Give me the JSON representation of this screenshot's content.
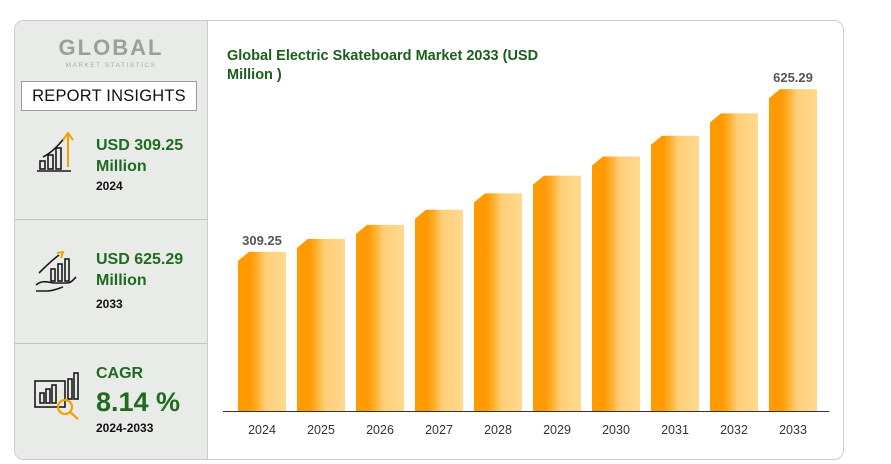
{
  "logo": {
    "main": "GLOBAL",
    "sub": "MARKET STATISTICS"
  },
  "sidebar": {
    "heading": "REPORT INSIGHTS",
    "stat1": {
      "value": "USD 309.25",
      "unit": "Million",
      "year": "2024",
      "icon": "bar-chart-up-icon"
    },
    "stat2": {
      "value": "USD 625.29",
      "unit": "Million",
      "year": "2033",
      "icon": "hand-growth-chart-icon"
    },
    "stat3": {
      "label": "CAGR",
      "value": "8.14 %",
      "years": "2024-2033",
      "icon": "magnifier-chart-icon"
    }
  },
  "colors": {
    "brand_green": "#1f6b1f",
    "bar_light": "#ffc56b",
    "bar_dark": "#ff9a00"
  },
  "chart_data": {
    "type": "bar",
    "title": "Global Electric Skateboard Market 2033 (USD Million )",
    "xlabel": "",
    "ylabel": "",
    "categories": [
      "2024",
      "2025",
      "2026",
      "2027",
      "2028",
      "2029",
      "2030",
      "2031",
      "2032",
      "2033"
    ],
    "values": [
      309.25,
      334.4,
      361.6,
      391.0,
      422.8,
      457.2,
      494.4,
      534.7,
      578.2,
      625.29
    ],
    "data_labels": {
      "2024": "309.25",
      "2033": "625.29"
    },
    "ylim": [
      0,
      680
    ],
    "grid": false,
    "legend": "none"
  }
}
